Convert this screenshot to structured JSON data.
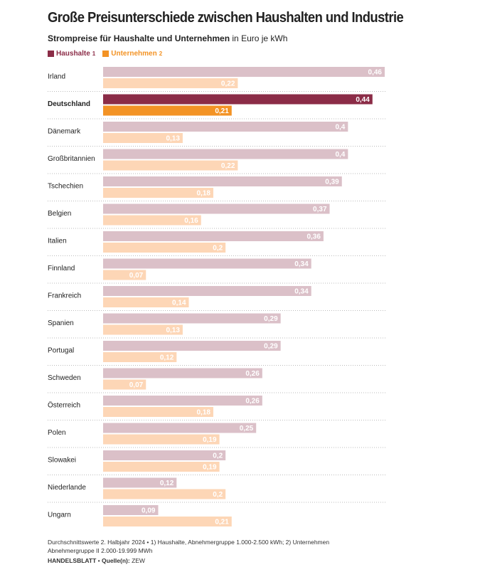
{
  "chart_data": {
    "type": "grouped-hbar",
    "title": "Große Preisunterschiede zwischen Haushalten und Industrie",
    "subtitle": "Strompreise für Haushalte und Unternehmen",
    "unit": "in Euro je kWh",
    "highlight": "Deutschland",
    "categories": [
      "Irland",
      "Deutschland",
      "Dänemark",
      "Großbritannien",
      "Tschechien",
      "Belgien",
      "Italien",
      "Finnland",
      "Frankreich",
      "Spanien",
      "Portugal",
      "Schweden",
      "Österreich",
      "Polen",
      "Slowakei",
      "Niederlande",
      "Ungarn"
    ],
    "series": [
      {
        "name": "Haushalte",
        "note": "1",
        "color": "#dbc0c8",
        "highlight_color": "#8b2c47",
        "values": [
          0.46,
          0.44,
          0.4,
          0.4,
          0.39,
          0.37,
          0.36,
          0.34,
          0.34,
          0.29,
          0.29,
          0.26,
          0.26,
          0.25,
          0.2,
          0.12,
          0.09
        ],
        "value_labels": [
          "0,46",
          "0,44",
          "0,4",
          "0,4",
          "0,39",
          "0,37",
          "0,36",
          "0,34",
          "0,34",
          "0,29",
          "0,29",
          "0,26",
          "0,26",
          "0,25",
          "0,2",
          "0,12",
          "0,09"
        ]
      },
      {
        "name": "Unternehmen",
        "note": "2",
        "color": "#fdd6b6",
        "highlight_color": "#f39325",
        "values": [
          0.22,
          0.21,
          0.13,
          0.22,
          0.18,
          0.16,
          0.2,
          0.07,
          0.14,
          0.13,
          0.12,
          0.07,
          0.18,
          0.19,
          0.19,
          0.2,
          0.21
        ],
        "value_labels": [
          "0,22",
          "0,21",
          "0,13",
          "0,22",
          "0,18",
          "0,16",
          "0,2",
          "0,07",
          "0,14",
          "0,13",
          "0,12",
          "0,07",
          "0,18",
          "0,19",
          "0,19",
          "0,2",
          "0,21"
        ]
      }
    ],
    "footnote": "Durchschnittswerte 2. Halbjahr 2024 • 1) Haushalte, Abnehmergruppe 1.000-2.500 kWh; 2) Unternehmen Abnehmergruppe II 2.000-19.999 MWh",
    "publisher": "HANDELSBLATT",
    "source_label": "Quelle(n):",
    "source": "ZEW"
  }
}
